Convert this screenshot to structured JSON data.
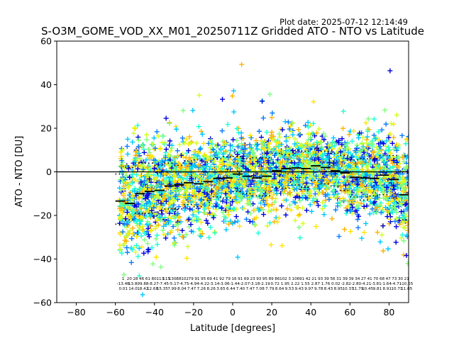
{
  "header": {
    "plot_date": "Plot date: 2025-07-12 12:14:49"
  },
  "chart_data": {
    "type": "scatter",
    "title": "S-O3M_GOME_VOD_XX_M01_20250711Z Gridded ATO - NTO vs Latitude",
    "xlabel": "Latitude [degrees]",
    "ylabel": "ATO - NTO [DU]",
    "xlim": [
      -90,
      90
    ],
    "ylim": [
      -60,
      60
    ],
    "xticks": [
      -80,
      -60,
      -40,
      -20,
      0,
      20,
      40,
      60,
      80
    ],
    "yticks": [
      -60,
      -40,
      -20,
      0,
      20,
      40,
      60
    ],
    "grid": false,
    "legend": "none",
    "zero_line": 0,
    "marker": "+",
    "point_colors": [
      "#00c8ff",
      "#1affd5",
      "#7dff7a",
      "#d4ff1f",
      "#ffe600",
      "#ffb300",
      "#0a7cff",
      "#0000e0"
    ],
    "series": [
      {
        "kind": "bin-mean",
        "color": "#000000",
        "bin_width": 5,
        "x": [
          -57.5,
          -52.5,
          -47.5,
          -42.5,
          -37.5,
          -32.5,
          -27.5,
          -22.5,
          -17.5,
          -12.5,
          -7.5,
          -2.5,
          2.5,
          7.5,
          12.5,
          17.5,
          22.5,
          27.5,
          32.5,
          37.5,
          42.5,
          47.5,
          52.5,
          57.5,
          62.5,
          67.5,
          72.5,
          77.5,
          82.5,
          87.5
        ],
        "y": [
          -13.4,
          -14.5,
          -10.0,
          -9.0,
          -8.5,
          -6.5,
          -6.0,
          -5.0,
          -5.5,
          -4.5,
          -3.0,
          -2.8,
          -1.0,
          -2.0,
          -2.8,
          -2.0,
          0.5,
          1.5,
          1.8,
          1.5,
          2.8,
          2.0,
          0.5,
          -0.5,
          -2.5,
          -2.8,
          -3.0,
          -1.5,
          -3.5,
          -10.5
        ]
      },
      {
        "kind": "bin-mean-plus-std",
        "color": "#000000",
        "x": [
          -57.5,
          -52.5,
          -47.5,
          -42.5,
          -37.5,
          -32.5,
          -27.5,
          -22.5,
          -17.5,
          -12.5,
          -7.5,
          -2.5,
          2.5,
          7.5,
          12.5,
          17.5,
          22.5,
          27.5,
          32.5,
          37.5,
          42.5,
          47.5,
          52.5,
          57.5,
          62.5,
          67.5,
          72.5,
          77.5,
          82.5,
          87.5
        ],
        "y": [
          -1.0,
          2.0,
          4.0,
          4.0,
          3.0,
          4.0,
          3.0,
          5.0,
          5.5,
          4.5,
          6.0,
          7.0,
          7.0,
          6.0,
          6.5,
          6.5,
          8.5,
          8.0,
          10.0,
          9.5,
          10.5,
          9.5,
          8.5,
          7.5,
          5.5,
          6.0,
          6.0,
          7.5,
          7.5,
          0.0
        ]
      },
      {
        "kind": "bin-mean-minus-std",
        "color": "#000000",
        "x": [
          -57.5,
          -52.5,
          -47.5,
          -42.5,
          -37.5,
          -32.5,
          -27.5,
          -22.5,
          -17.5,
          -12.5,
          -7.5,
          -2.5,
          2.5,
          7.5,
          12.5,
          17.5,
          22.5,
          27.5,
          32.5,
          37.5,
          42.5,
          47.5,
          52.5,
          57.5,
          62.5,
          67.5,
          72.5,
          77.5,
          82.5,
          87.5
        ],
        "y": [
          -24.0,
          -22.0,
          -19.0,
          -19.0,
          -18.5,
          -17.0,
          -17.0,
          -15.0,
          -16.0,
          -13.0,
          -11.5,
          -12.0,
          -9.0,
          -10.0,
          -11.0,
          -11.0,
          -7.0,
          -7.5,
          -6.0,
          -7.0,
          -4.0,
          -5.5,
          -6.5,
          -8.5,
          -11.5,
          -13.0,
          -11.0,
          -10.5,
          -12.0,
          -22.0
        ]
      }
    ],
    "stats_text": {
      "rows": [
        [
          "1",
          "20",
          "28",
          "46",
          "61",
          "80",
          "113",
          "115",
          "130",
          "88",
          "102",
          "79",
          "91",
          "95",
          "69",
          "41",
          "92",
          "79",
          "16",
          "91",
          "69",
          "23",
          "93",
          "95",
          "89",
          "86",
          "102",
          "3",
          "106",
          "91",
          "42",
          "21",
          "93",
          "39",
          "56",
          "31",
          "39",
          "39",
          "34",
          "27",
          "41",
          "70",
          "68",
          "47",
          "73",
          "30",
          "21"
        ],
        [
          "-13.45",
          "-13.80",
          "-9.88",
          "-8.27",
          "-7.45",
          "-5.17",
          "-4.75",
          "-4.94",
          "-4.22",
          "-3.14",
          "-3.06",
          "-1.44",
          "-2.07",
          "-3.18",
          "-2.19",
          "0.72",
          "1.95",
          "2.22",
          "1.55",
          "2.87",
          "1.76",
          "0.02",
          "-2.82",
          "-2.80",
          "-4.21",
          "-3.81",
          "-1.64",
          "-4.71",
          "-10.65"
        ],
        [
          "0.01",
          "14.0",
          "18.42",
          "12.68",
          "15.35",
          "7.99",
          "8.04",
          "7.47",
          "7.26",
          "8.26",
          "3.65",
          "6.44",
          "7.40",
          "7.47",
          "7.08",
          "7.79",
          "8.64",
          "9.53",
          "9.43",
          "9.97",
          "9.78",
          "8.43",
          "8.95",
          "10.37",
          "11.79",
          "10.45",
          "9.81",
          "8.91",
          "10.71",
          "11.05"
        ]
      ]
    }
  }
}
